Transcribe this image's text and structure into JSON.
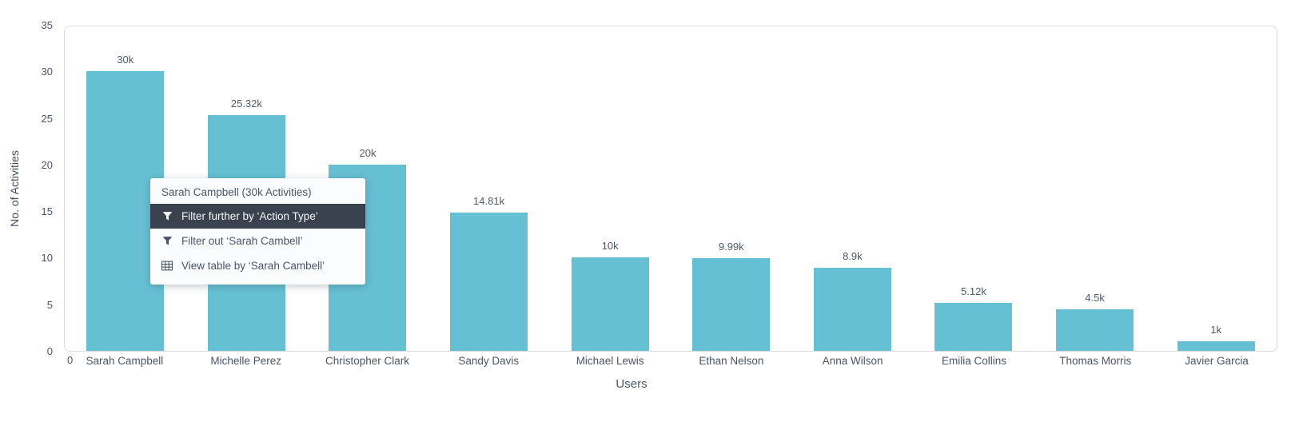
{
  "chart_data": {
    "type": "bar",
    "title": "",
    "xlabel": "Users",
    "ylabel": "No. of Activities",
    "categories": [
      "Sarah Campbell",
      "Michelle Perez",
      "Christopher Clark",
      "Sandy Davis",
      "Michael Lewis",
      "Ethan Nelson",
      "Anna Wilson",
      "Emilia Collins",
      "Thomas Morris",
      "Javier Garcia"
    ],
    "values": [
      30,
      25.32,
      20,
      14.81,
      10,
      9.99,
      8.9,
      5.12,
      4.5,
      1
    ],
    "value_labels": [
      "30k",
      "25.32k",
      "20k",
      "14.81k",
      "10k",
      "9.99k",
      "8.9k",
      "5.12k",
      "4.5k",
      "1k"
    ],
    "unit": "k",
    "ylim": [
      0,
      35
    ],
    "yticks": [
      0,
      5,
      10,
      15,
      20,
      25,
      30,
      35
    ],
    "x_origin_label": "0",
    "grid": false,
    "legend": "none",
    "bar_color": "#66c0d4"
  },
  "context_menu": {
    "header": "Sarah Campbell (30k Activities)",
    "highlight_bg": "#3a4250",
    "items": [
      {
        "label": "Filter further by ‘Action Type’",
        "icon": "filter-icon",
        "highlighted": true
      },
      {
        "label": "Filter out ‘Sarah Cambell’",
        "icon": "filter-icon",
        "highlighted": false
      },
      {
        "label": "View table by ‘Sarah Cambell’",
        "icon": "table-icon",
        "highlighted": false
      }
    ]
  }
}
